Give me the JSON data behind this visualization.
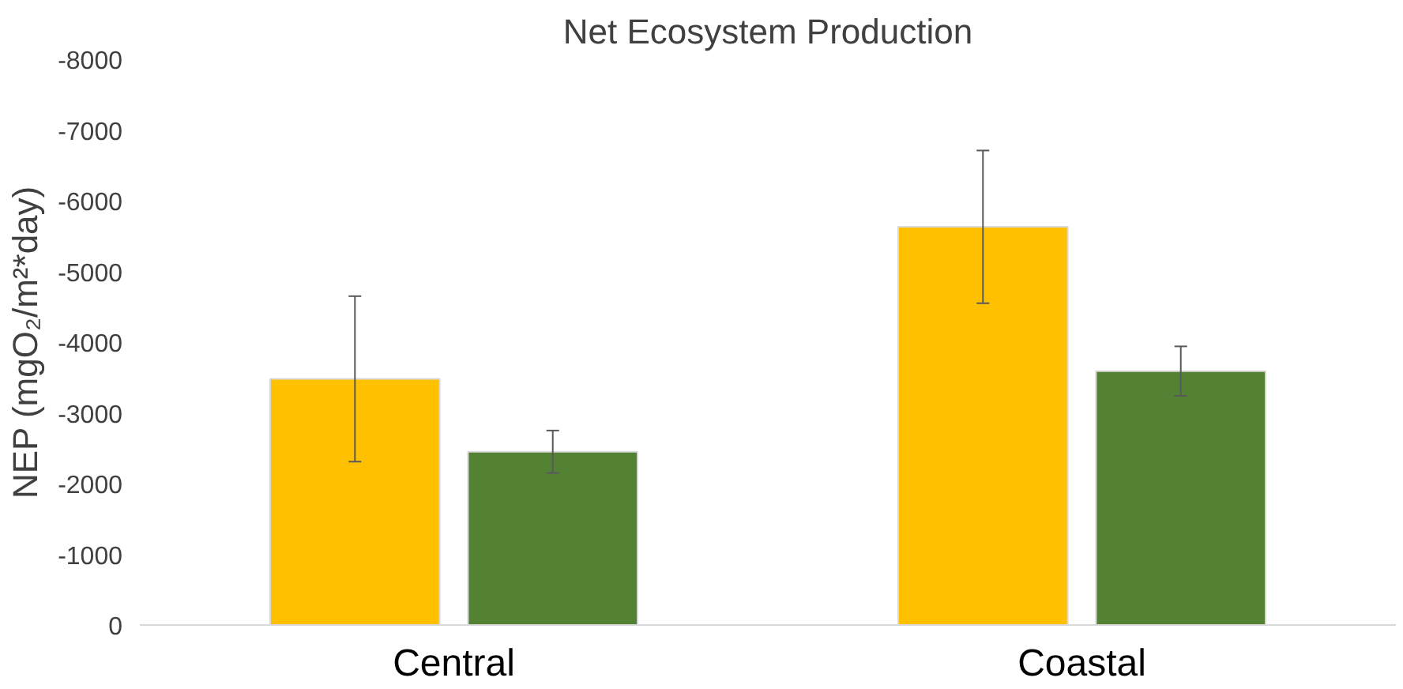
{
  "chart_data": {
    "type": "bar",
    "title": "Net Ecosystem Production",
    "ylabel": "NEP (mgO₂/m²*day)",
    "categories": [
      "Central",
      "Coastal"
    ],
    "series": [
      {
        "color": "#ffc000",
        "values": [
          -3480,
          -5630
        ],
        "errors": [
          1170,
          1080
        ]
      },
      {
        "color": "#548235",
        "values": [
          -2450,
          -3590
        ],
        "errors": [
          300,
          350
        ]
      }
    ],
    "ylim": [
      0,
      -8000
    ],
    "yticks": [
      0,
      -1000,
      -2000,
      -3000,
      -4000,
      -5000,
      -6000,
      -7000,
      -8000
    ],
    "grid": false
  }
}
